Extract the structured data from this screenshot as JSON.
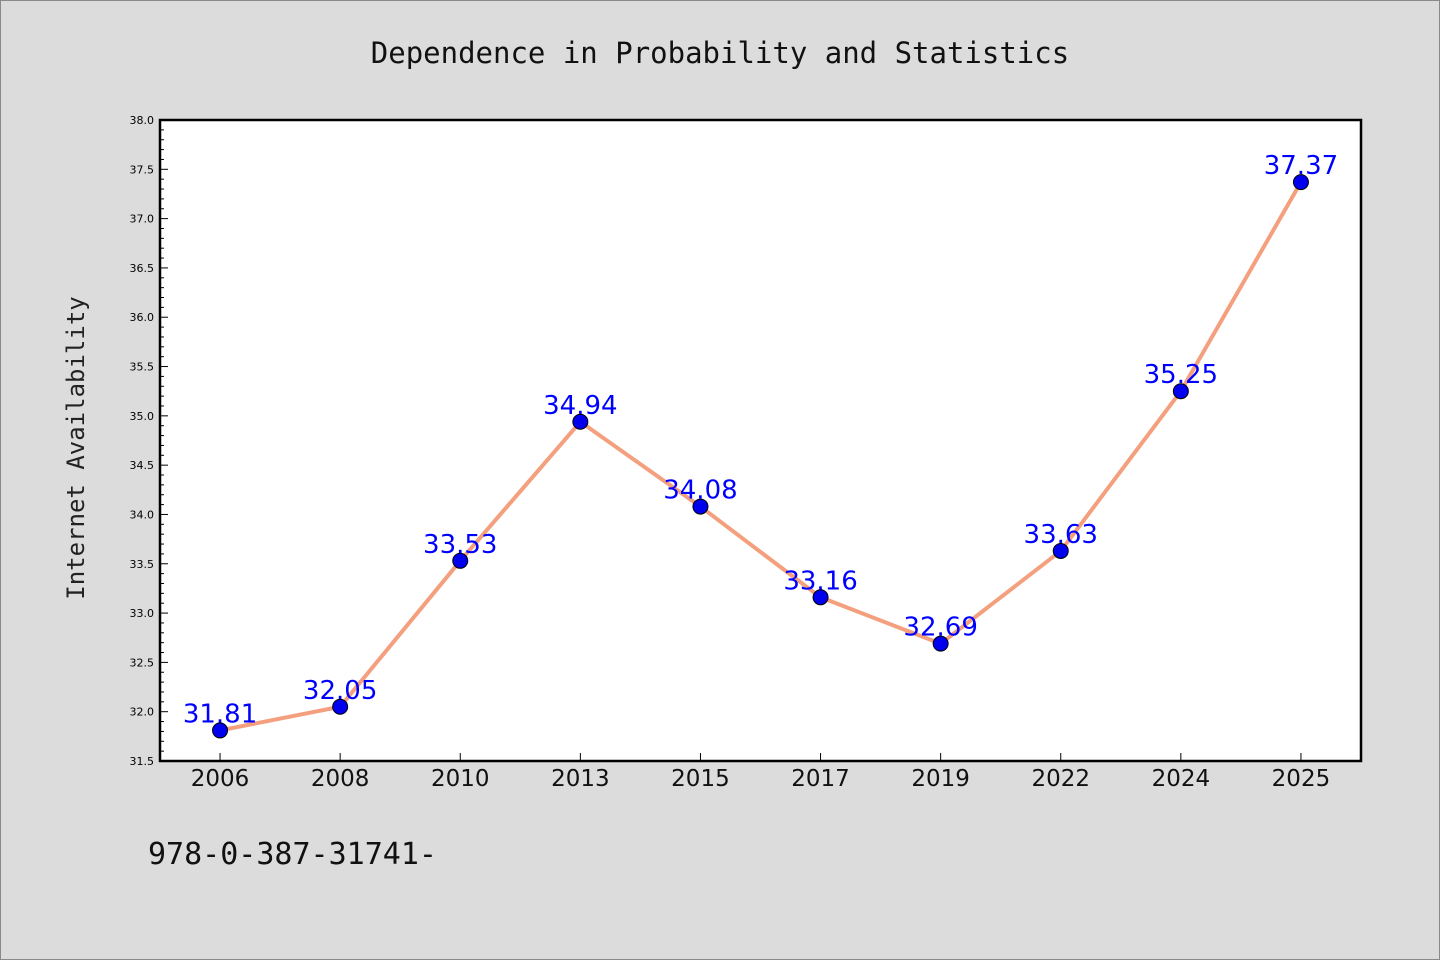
{
  "chart_data": {
    "type": "line",
    "title": "Dependence in Probability and Statistics",
    "xlabel": "",
    "ylabel": "Internet Availability",
    "categories": [
      "2006",
      "2008",
      "2010",
      "2013",
      "2015",
      "2017",
      "2019",
      "2022",
      "2024",
      "2025"
    ],
    "series": [
      {
        "values": [
          31.81,
          32.05,
          33.53,
          34.94,
          34.08,
          33.16,
          32.69,
          33.63,
          35.25,
          37.37
        ],
        "data_labels": [
          "31.81",
          "32.05",
          "33.53",
          "34.94",
          "34.08",
          "33.16",
          "32.69",
          "33.63",
          "35.25",
          "37.37"
        ],
        "line_color": "#f4a07e",
        "marker_color": "#0000ee"
      }
    ],
    "ylim": [
      31.5,
      38.0
    ],
    "yticks": [
      "31.5",
      "32.0",
      "32.5",
      "33.0",
      "33.5",
      "34.0",
      "34.5",
      "35.0",
      "35.5",
      "36.0",
      "36.5",
      "37.0",
      "37.5",
      "38.0"
    ],
    "grid": false,
    "legend": "none"
  },
  "footer": {
    "text": "978-0-387-31741-"
  },
  "colors": {
    "background": "#dcdcdc",
    "plot_area": "#ffffff",
    "data_label": "#0000ff"
  }
}
